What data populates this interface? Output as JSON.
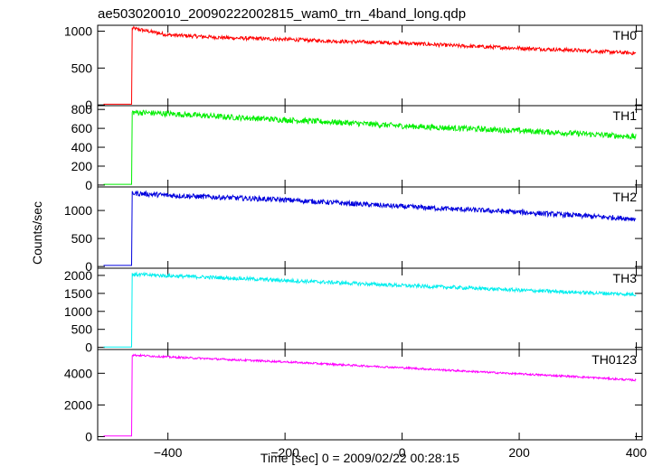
{
  "chart_data": {
    "type": "line",
    "title": "ae503020010_20090222002815_wam0_trn_4band_long.qdp",
    "xlabel": "Time [sec] 0 = 2009/02/22 00:28:15",
    "ylabel": "Counts/sec",
    "xlim": [
      -520,
      410
    ],
    "xticks": [
      -400,
      -200,
      0,
      200,
      400
    ],
    "x_tick_labels": [
      "−400",
      "−200",
      "0",
      "200",
      "400"
    ],
    "panels": [
      {
        "name": "TH0",
        "color": "#ff0000",
        "ylim": [
          -10,
          1080
        ],
        "yticks": [
          0,
          500,
          1000
        ],
        "y_tick_labels": [
          "0",
          "500",
          "1000"
        ],
        "pre_level": 10,
        "onset": -462,
        "points": [
          [
            -461,
            1040
          ],
          [
            -400,
            950
          ],
          [
            -300,
            910
          ],
          [
            -200,
            890
          ],
          [
            -100,
            860
          ],
          [
            0,
            840
          ],
          [
            100,
            800
          ],
          [
            200,
            770
          ],
          [
            300,
            740
          ],
          [
            400,
            700
          ]
        ],
        "noise": 25
      },
      {
        "name": "TH1",
        "color": "#00ee00",
        "ylim": [
          -20,
          840
        ],
        "yticks": [
          0,
          200,
          400,
          600,
          800
        ],
        "y_tick_labels": [
          "0",
          "200",
          "400",
          "600",
          "800"
        ],
        "pre_level": 8,
        "onset": -462,
        "points": [
          [
            -461,
            770
          ],
          [
            -400,
            755
          ],
          [
            -300,
            720
          ],
          [
            -200,
            690
          ],
          [
            -100,
            660
          ],
          [
            0,
            625
          ],
          [
            100,
            600
          ],
          [
            200,
            575
          ],
          [
            300,
            545
          ],
          [
            400,
            510
          ]
        ],
        "noise": 30
      },
      {
        "name": "TH2",
        "color": "#0000dd",
        "ylim": [
          -30,
          1420
        ],
        "yticks": [
          0,
          500,
          1000
        ],
        "y_tick_labels": [
          "0",
          "500",
          "1000"
        ],
        "pre_level": 20,
        "onset": -462,
        "points": [
          [
            -461,
            1310
          ],
          [
            -400,
            1270
          ],
          [
            -300,
            1230
          ],
          [
            -200,
            1190
          ],
          [
            -100,
            1130
          ],
          [
            0,
            1070
          ],
          [
            100,
            1020
          ],
          [
            200,
            970
          ],
          [
            300,
            910
          ],
          [
            400,
            850
          ]
        ],
        "noise": 45
      },
      {
        "name": "TH3",
        "color": "#00eeee",
        "ylim": [
          -60,
          2200
        ],
        "yticks": [
          0,
          500,
          1000,
          1500,
          2000
        ],
        "y_tick_labels": [
          "0",
          "500",
          "1000",
          "1500",
          "2000"
        ],
        "pre_level": 10,
        "onset": -462,
        "points": [
          [
            -461,
            2030
          ],
          [
            -400,
            1990
          ],
          [
            -300,
            1930
          ],
          [
            -200,
            1860
          ],
          [
            -100,
            1790
          ],
          [
            0,
            1720
          ],
          [
            100,
            1660
          ],
          [
            200,
            1590
          ],
          [
            300,
            1530
          ],
          [
            400,
            1470
          ]
        ],
        "noise": 50
      },
      {
        "name": "TH0123",
        "color": "#ff00ff",
        "ylim": [
          -200,
          5500
        ],
        "yticks": [
          0,
          2000,
          4000
        ],
        "y_tick_labels": [
          "0",
          "2000",
          "4000"
        ],
        "pre_level": 40,
        "onset": -462,
        "points": [
          [
            -461,
            5150
          ],
          [
            -400,
            5030
          ],
          [
            -300,
            4870
          ],
          [
            -200,
            4720
          ],
          [
            -100,
            4530
          ],
          [
            0,
            4350
          ],
          [
            100,
            4150
          ],
          [
            200,
            3960
          ],
          [
            300,
            3780
          ],
          [
            400,
            3560
          ]
        ],
        "noise": 60
      }
    ]
  }
}
